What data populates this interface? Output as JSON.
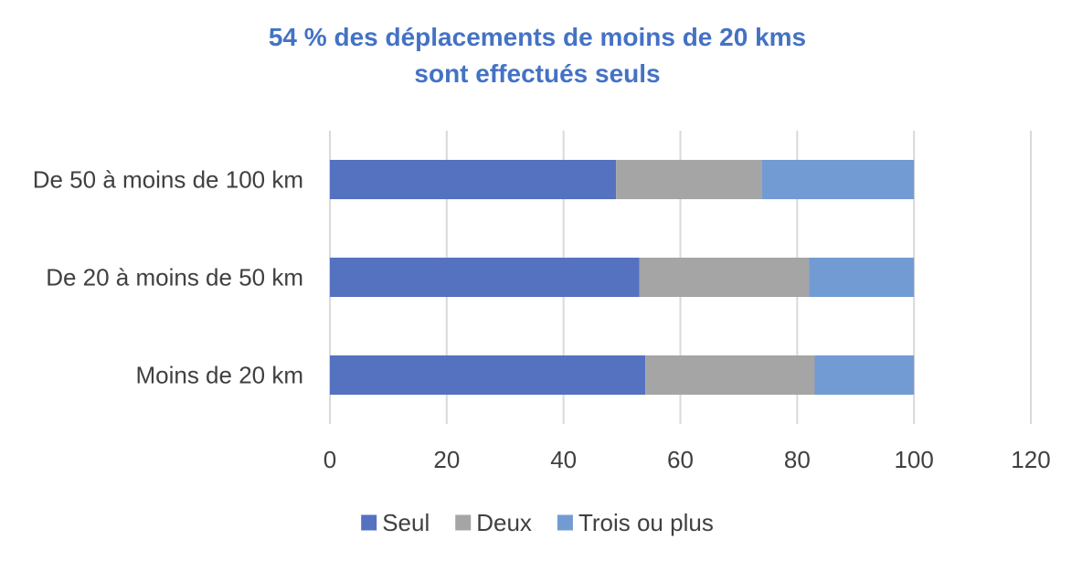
{
  "chart_data": {
    "type": "bar",
    "orientation": "horizontal",
    "stacked": true,
    "title": [
      "54 % des déplacements de moins de 20 kms",
      "sont effectués seuls"
    ],
    "categories": [
      "Moins de 20 km",
      "De 20 à moins de 50 km",
      "De 50 à moins de 100 km"
    ],
    "series": [
      {
        "name": "Seul",
        "color": "#5572C0",
        "values": [
          54,
          53,
          49
        ]
      },
      {
        "name": "Deux",
        "color": "#A5A5A5",
        "values": [
          29,
          29,
          25
        ]
      },
      {
        "name": "Trois ou plus",
        "color": "#729BD3",
        "values": [
          17,
          18,
          26
        ]
      }
    ],
    "xlim": [
      0,
      120
    ],
    "xticks": [
      0,
      20,
      40,
      60,
      80,
      100,
      120
    ],
    "grid": true,
    "legend": "bottom",
    "title_color": "#4472C4"
  }
}
